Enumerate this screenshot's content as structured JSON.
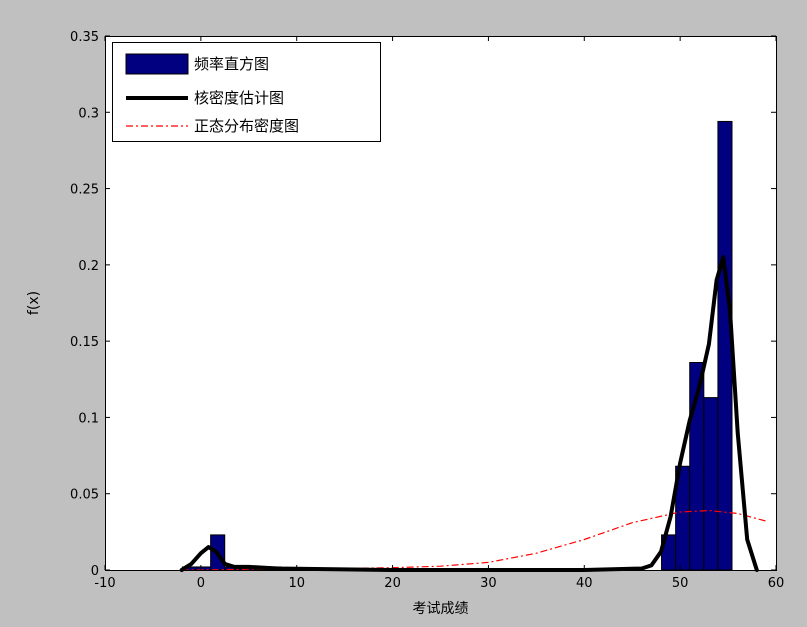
{
  "chart_data": {
    "type": "bar",
    "xlabel": "考试成绩",
    "ylabel": "f(x)",
    "xlim": [
      -10,
      60
    ],
    "ylim": [
      0,
      0.35
    ],
    "x_ticks": [
      -10,
      0,
      10,
      20,
      30,
      40,
      50,
      60
    ],
    "x_tick_labels": [
      "-10",
      "0",
      "10",
      "20",
      "30",
      "40",
      "50",
      "60"
    ],
    "y_ticks": [
      0,
      0.05,
      0.1,
      0.15,
      0.2,
      0.25,
      0.3,
      0.35
    ],
    "y_tick_labels": [
      "0",
      "0.05",
      "0.1",
      "0.15",
      "0.2",
      "0.25",
      "0.3",
      "0.35"
    ],
    "grid": false,
    "legend": {
      "placement": "top-left"
    },
    "colors": {
      "background": "#c0c0c0",
      "plot_area": "#ffffff",
      "bar_fill": "#000080",
      "kde_line": "#000000",
      "normal_line": "#ff0000"
    },
    "series": [
      {
        "name": "频率直方图",
        "kind": "histogram",
        "bin_width": 1.47,
        "bins": [
          {
            "x0": -1.92,
            "value": 0.002
          },
          {
            "x0": -0.45,
            "value": 0.002
          },
          {
            "x0": 1.02,
            "value": 0.023
          },
          {
            "x0": 2.49,
            "value": 0.002
          },
          {
            "x0": 3.96,
            "value": 0.002
          },
          {
            "x0": 5.43,
            "value": 0.002
          },
          {
            "x0": 6.9,
            "value": 0.002
          },
          {
            "x0": 48.06,
            "value": 0.023
          },
          {
            "x0": 49.53,
            "value": 0.068
          },
          {
            "x0": 51.0,
            "value": 0.136
          },
          {
            "x0": 52.47,
            "value": 0.113
          },
          {
            "x0": 53.94,
            "value": 0.294
          }
        ]
      },
      {
        "name": "核密度估计图",
        "kind": "line",
        "x": [
          -2,
          -1,
          0,
          0.8,
          1.6,
          2.5,
          3.5,
          5,
          8,
          20,
          40,
          46,
          47,
          48,
          49,
          50,
          51,
          52,
          53,
          53.8,
          54.5,
          55.2,
          56,
          57,
          58
        ],
        "y": [
          0.0,
          0.004,
          0.011,
          0.015,
          0.012,
          0.004,
          0.002,
          0.002,
          0.001,
          0.0,
          0.0,
          0.001,
          0.003,
          0.012,
          0.035,
          0.07,
          0.098,
          0.12,
          0.148,
          0.19,
          0.205,
          0.17,
          0.09,
          0.02,
          0.0
        ]
      },
      {
        "name": "正态分布密度图",
        "kind": "line",
        "x": [
          -2,
          0,
          5,
          10,
          15,
          20,
          25,
          30,
          35,
          40,
          45,
          50,
          53,
          56,
          59
        ],
        "y": [
          0.0,
          0.0,
          0.0005,
          0.0008,
          0.001,
          0.0015,
          0.0025,
          0.005,
          0.011,
          0.02,
          0.031,
          0.038,
          0.039,
          0.037,
          0.032
        ]
      }
    ]
  }
}
